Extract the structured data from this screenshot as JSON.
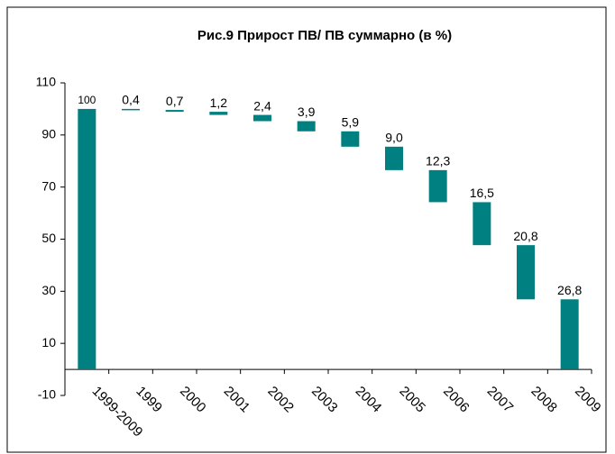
{
  "chart_data": {
    "type": "waterfall",
    "title": "Рис.9 Прирост ПВ/ ПВ суммарно (в %)",
    "categories": [
      "1999-2009",
      "1999",
      "2000",
      "2001",
      "2002",
      "2003",
      "2004",
      "2005",
      "2006",
      "2007",
      "2008",
      "2009"
    ],
    "values": [
      100,
      0.4,
      0.7,
      1.2,
      2.4,
      3.9,
      5.9,
      9.0,
      12.3,
      16.5,
      20.8,
      26.8
    ],
    "value_labels": [
      "100",
      "0,4",
      "0,7",
      "1,2",
      "2,4",
      "3,9",
      "5,9",
      "9,0",
      "12,3",
      "16,5",
      "20,8",
      "26,8"
    ],
    "color": "#008080",
    "ylim": [
      -10,
      110
    ],
    "yticks": [
      -10,
      10,
      30,
      50,
      70,
      90,
      110
    ]
  }
}
